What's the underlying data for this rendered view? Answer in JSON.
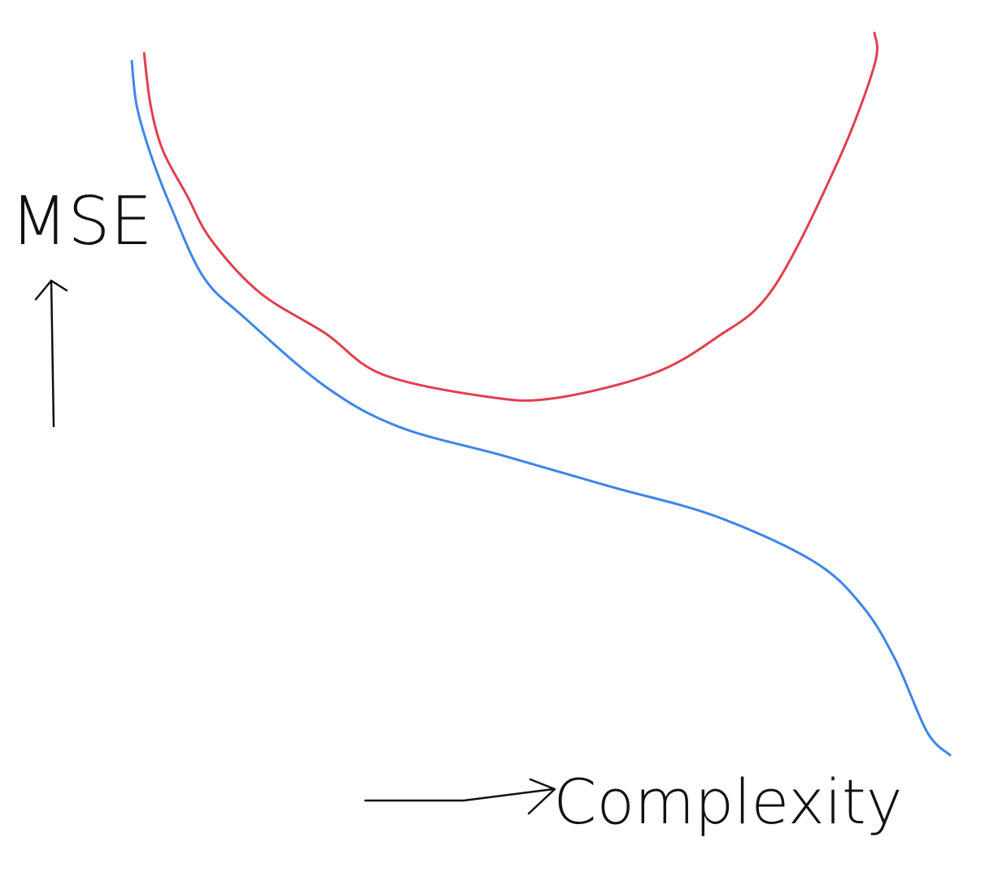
{
  "chart_data": {
    "type": "line",
    "ylabel": "MSE",
    "xlabel": "Complexity",
    "xlim": [
      0,
      10
    ],
    "ylim": [
      0,
      10
    ],
    "series": [
      {
        "color": "#e0404e",
        "x": [
          0.17,
          0.25,
          0.4,
          0.69,
          0.99,
          1.58,
          2.38,
          3.07,
          4.36,
          5.15,
          6.34,
          7.13,
          7.82,
          8.61,
          9.06,
          9.06
        ],
        "values": [
          9.66,
          8.94,
          8.32,
          7.71,
          7.09,
          6.37,
          5.81,
          5.25,
          4.94,
          4.92,
          5.25,
          5.75,
          6.42,
          8.16,
          9.5,
          9.94
        ]
      },
      {
        "color": "#3d86e8",
        "x": [
          0.02,
          0.08,
          0.25,
          0.5,
          0.89,
          1.39,
          2.38,
          3.27,
          4.55,
          5.84,
          7.13,
          8.32,
          8.91,
          9.31,
          9.7,
          9.98
        ],
        "values": [
          9.55,
          8.94,
          8.27,
          7.54,
          6.59,
          6.03,
          5.08,
          4.53,
          4.13,
          3.71,
          3.3,
          2.68,
          2.07,
          1.34,
          0.34,
          0.02
        ]
      }
    ]
  }
}
